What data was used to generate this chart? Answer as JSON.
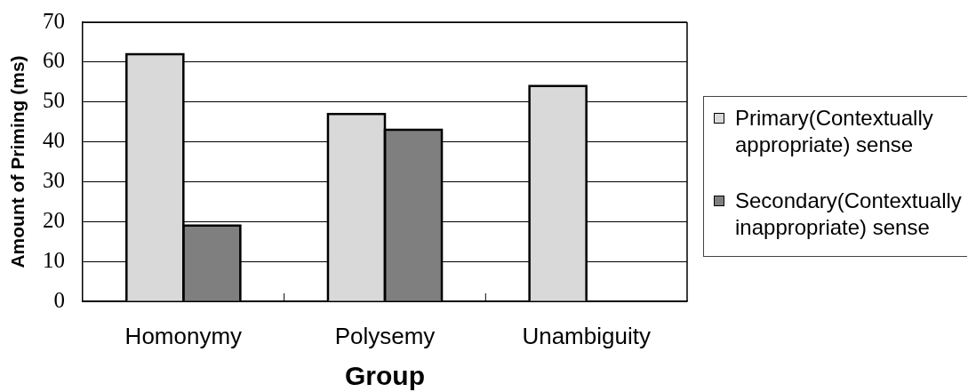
{
  "chart_data": {
    "type": "bar",
    "xlabel": "Group",
    "ylabel": "Amount of Priming (ms)",
    "categories": [
      "Homonymy",
      "Polysemy",
      "Unambiguity"
    ],
    "series": [
      {
        "name": "Primary(Contextually appropriate) sense",
        "color": "#d9d9d9",
        "values": [
          62,
          47,
          54
        ]
      },
      {
        "name": "Secondary(Contextually inappropriate) sense",
        "color": "#7f7f7f",
        "values": [
          19,
          43,
          null
        ]
      }
    ],
    "ylim": [
      0,
      70
    ],
    "yticks": [
      0,
      10,
      20,
      30,
      40,
      50,
      60,
      70
    ],
    "grid": "y",
    "legend": "right"
  }
}
